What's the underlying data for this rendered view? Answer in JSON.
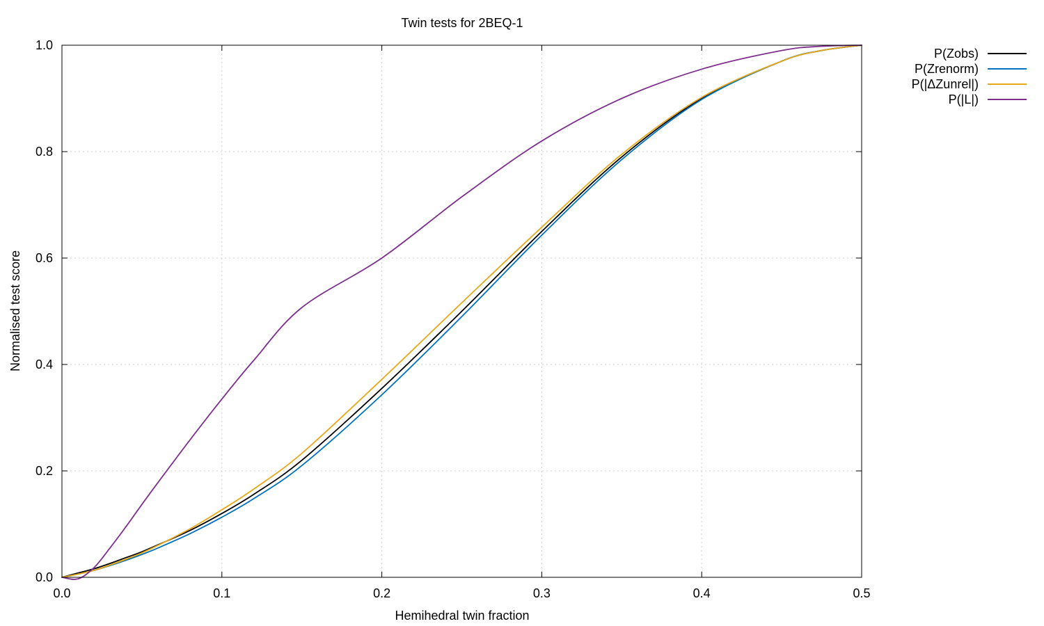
{
  "chart_data": {
    "type": "line",
    "title": "Twin tests for 2BEQ-1",
    "xlabel": "Hemihedral twin fraction",
    "ylabel": "Normalised test score",
    "xlim": [
      0.0,
      0.5
    ],
    "ylim": [
      0.0,
      1.0
    ],
    "xticks": [
      "0.0",
      "0.1",
      "0.2",
      "0.3",
      "0.4",
      "0.5"
    ],
    "yticks": [
      "0.0",
      "0.2",
      "0.4",
      "0.6",
      "0.8",
      "1.0"
    ],
    "grid": true,
    "legend_position": "outside-top-right",
    "x": [
      0.0,
      0.01,
      0.02,
      0.03,
      0.04,
      0.05,
      0.06,
      0.08,
      0.1,
      0.12,
      0.15,
      0.2,
      0.25,
      0.3,
      0.35,
      0.4,
      0.45,
      0.475,
      0.5
    ],
    "series": [
      {
        "name": "P(Zobs)",
        "color": "#000000",
        "values": [
          0.0,
          0.008,
          0.016,
          0.026,
          0.037,
          0.048,
          0.061,
          0.088,
          0.12,
          0.156,
          0.22,
          0.355,
          0.5,
          0.65,
          0.79,
          0.9,
          0.97,
          0.99,
          1.0
        ]
      },
      {
        "name": "P(Zrenorm)",
        "color": "#0072bd",
        "values": [
          0.0,
          0.006,
          0.013,
          0.022,
          0.032,
          0.043,
          0.055,
          0.082,
          0.113,
          0.148,
          0.21,
          0.343,
          0.49,
          0.643,
          0.785,
          0.898,
          0.97,
          0.99,
          1.0
        ]
      },
      {
        "name": "P(|ΔZunrel|)",
        "color": "#e6a817",
        "values": [
          0.0,
          0.006,
          0.013,
          0.023,
          0.034,
          0.046,
          0.06,
          0.091,
          0.127,
          0.166,
          0.233,
          0.372,
          0.516,
          0.658,
          0.795,
          0.902,
          0.97,
          0.99,
          1.0
        ]
      },
      {
        "name": "P(|L|)",
        "color": "#7e2f8e",
        "values": [
          0.0,
          -0.003,
          0.018,
          0.055,
          0.095,
          0.137,
          0.178,
          0.258,
          0.335,
          0.408,
          0.507,
          0.6,
          0.715,
          0.82,
          0.9,
          0.955,
          0.99,
          0.998,
          1.0
        ]
      }
    ]
  }
}
